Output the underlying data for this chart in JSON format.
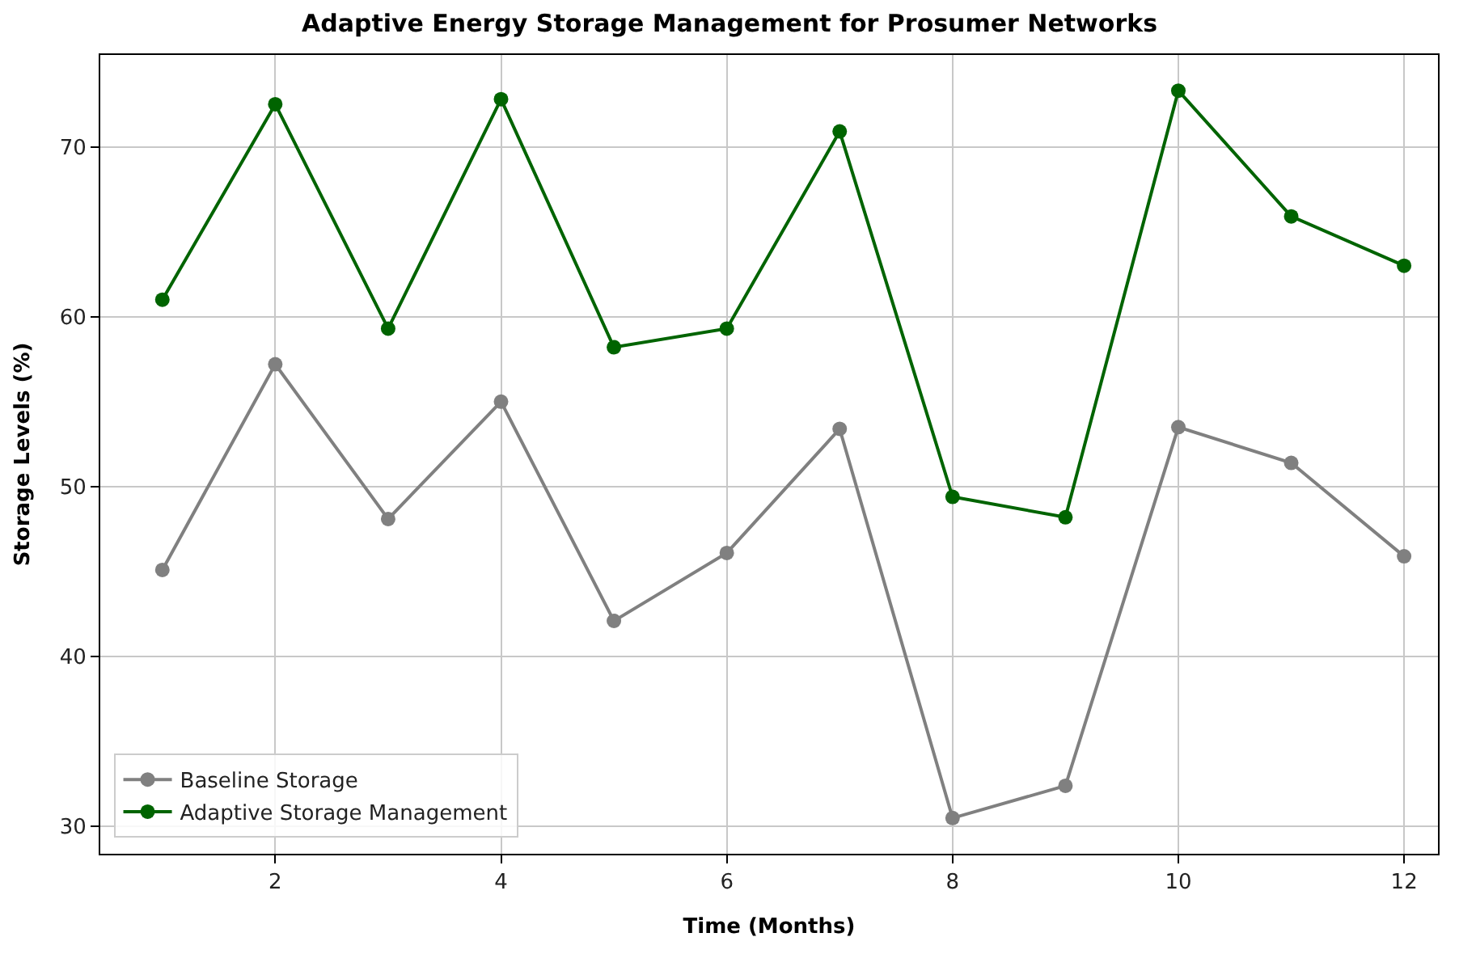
{
  "chart_data": {
    "type": "line",
    "title": "Adaptive Energy Storage Management for Prosumer Networks",
    "xlabel": "Time (Months)",
    "ylabel": "Storage Levels (%)",
    "x": [
      1,
      2,
      3,
      4,
      5,
      6,
      7,
      8,
      9,
      10,
      11,
      12
    ],
    "series": [
      {
        "name": "Baseline Storage",
        "color": "#808080",
        "values": [
          45.1,
          57.2,
          48.1,
          55.0,
          42.1,
          46.1,
          53.4,
          30.5,
          32.4,
          53.5,
          51.4,
          45.9
        ]
      },
      {
        "name": "Adaptive Storage Management",
        "color": "#006400",
        "values": [
          61.0,
          72.5,
          59.3,
          72.8,
          58.2,
          59.3,
          70.9,
          49.4,
          48.2,
          73.3,
          65.9,
          63.0
        ]
      }
    ],
    "xlim": [
      0.45,
      12.3
    ],
    "xticks": [
      2,
      4,
      6,
      8,
      10,
      12
    ],
    "ylim": [
      28.4,
      75.4
    ],
    "yticks": [
      30,
      40,
      50,
      60,
      70
    ],
    "grid": true,
    "legend": "bottom left",
    "marker": "circle",
    "line_style": "solid"
  }
}
